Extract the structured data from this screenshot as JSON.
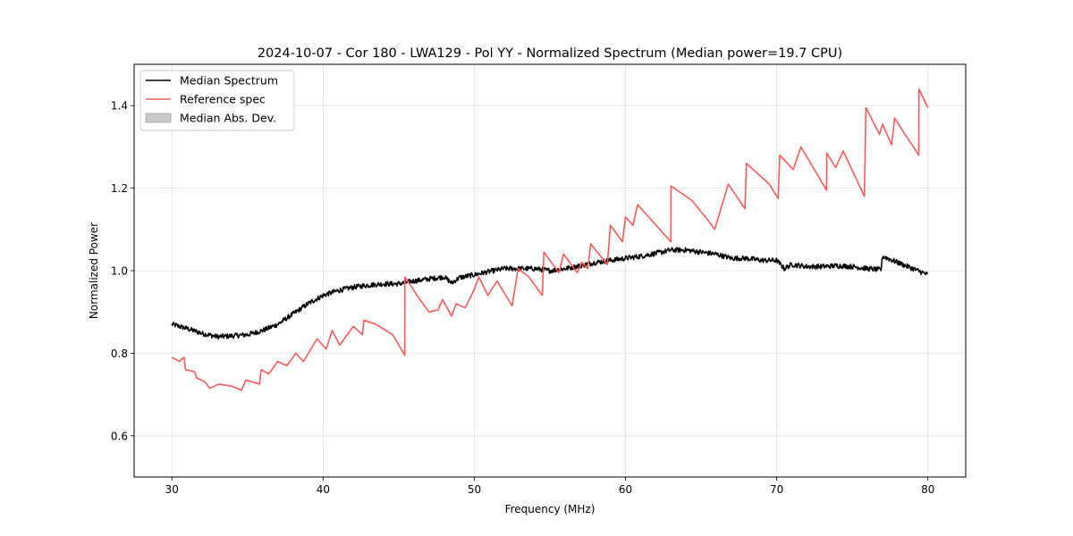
{
  "chart_data": {
    "type": "line",
    "title": "2024-10-07 - Cor 180 - LWA129 - Pol YY - Normalized Spectrum (Median power=19.7 CPU)",
    "xlabel": "Frequency (MHz)",
    "ylabel": "Normalized Power",
    "xlim": [
      27.5,
      82.5
    ],
    "ylim": [
      0.5,
      1.5
    ],
    "xticks": [
      30,
      40,
      50,
      60,
      70,
      80
    ],
    "xtick_labels": [
      "30",
      "40",
      "50",
      "60",
      "70",
      "80"
    ],
    "yticks": [
      0.6,
      0.8,
      1.0,
      1.2,
      1.4
    ],
    "ytick_labels": [
      "0.6",
      "0.8",
      "1.0",
      "1.2",
      "1.4"
    ],
    "grid": true,
    "legend_position": "top-left",
    "legend": [
      {
        "label": "Median Spectrum",
        "kind": "line",
        "color": "#000000"
      },
      {
        "label": "Reference spec",
        "kind": "line",
        "color": "#ff5a5a"
      },
      {
        "label": "Median Abs. Dev.",
        "kind": "patch",
        "color": "#a0a0a0"
      }
    ],
    "series": [
      {
        "name": "Median Spectrum",
        "color": "#000000",
        "noise_amplitude": 0.006,
        "x": [
          30,
          31,
          32,
          33,
          34,
          35,
          36,
          37,
          38,
          39,
          40,
          41,
          42,
          43,
          44,
          45,
          46,
          47,
          48,
          48.5,
          49,
          50,
          51,
          52,
          53,
          54,
          55,
          56,
          57,
          58,
          59,
          60,
          61,
          62,
          63,
          64,
          65,
          66,
          67,
          68,
          69,
          70,
          70.5,
          71,
          72,
          73,
          74,
          75,
          76,
          76.9,
          77,
          78,
          79,
          80
        ],
        "y": [
          0.87,
          0.86,
          0.848,
          0.84,
          0.842,
          0.845,
          0.855,
          0.87,
          0.895,
          0.92,
          0.94,
          0.952,
          0.96,
          0.965,
          0.968,
          0.968,
          0.975,
          0.98,
          0.985,
          0.97,
          0.983,
          0.99,
          0.998,
          1.005,
          1.005,
          1.005,
          1.0,
          1.005,
          1.012,
          1.02,
          1.025,
          1.03,
          1.035,
          1.042,
          1.05,
          1.05,
          1.045,
          1.04,
          1.03,
          1.03,
          1.025,
          1.025,
          1.005,
          1.015,
          1.01,
          1.01,
          1.012,
          1.01,
          1.005,
          1.002,
          1.035,
          1.02,
          1.005,
          0.99
        ]
      },
      {
        "name": "Reference spec",
        "color": "#ff5a5a",
        "x": [
          30.0,
          30.5,
          30.8,
          30.9,
          31.5,
          31.65,
          32.2,
          32.5,
          33.1,
          34.0,
          34.6,
          34.9,
          35.8,
          35.9,
          36.4,
          37.0,
          37.6,
          38.2,
          38.7,
          39.6,
          40.2,
          40.6,
          41.1,
          42.0,
          42.6,
          42.7,
          43.5,
          44.6,
          45.4,
          45.41,
          46.4,
          47.0,
          47.6,
          47.9,
          48.5,
          48.8,
          49.4,
          50.0,
          50.3,
          50.9,
          51.5,
          52.5,
          52.9,
          53.6,
          54.5,
          54.6,
          55.6,
          55.9,
          56.8,
          57.1,
          57.5,
          57.7,
          58.8,
          59.0,
          59.8,
          60.0,
          60.5,
          60.8,
          63.0,
          63.01,
          64.4,
          65.5,
          65.9,
          66.8,
          67.9,
          68.0,
          69.5,
          70.1,
          70.2,
          71.1,
          71.6,
          73.3,
          73.31,
          73.9,
          74.4,
          75.8,
          75.9,
          76.8,
          77.0,
          77.6,
          77.8,
          78.4,
          79.4,
          79.41,
          80.0
        ],
        "y": [
          0.79,
          0.78,
          0.79,
          0.76,
          0.755,
          0.74,
          0.73,
          0.715,
          0.725,
          0.72,
          0.71,
          0.735,
          0.725,
          0.76,
          0.75,
          0.78,
          0.77,
          0.8,
          0.78,
          0.835,
          0.81,
          0.855,
          0.82,
          0.865,
          0.845,
          0.88,
          0.87,
          0.845,
          0.795,
          0.985,
          0.93,
          0.9,
          0.905,
          0.93,
          0.89,
          0.92,
          0.91,
          0.955,
          0.985,
          0.94,
          0.975,
          0.915,
          1.005,
          0.985,
          0.94,
          1.045,
          0.995,
          1.04,
          0.995,
          1.02,
          1.005,
          1.065,
          1.015,
          1.11,
          1.07,
          1.13,
          1.11,
          1.16,
          1.07,
          1.205,
          1.17,
          1.12,
          1.1,
          1.21,
          1.15,
          1.26,
          1.21,
          1.175,
          1.28,
          1.245,
          1.3,
          1.195,
          1.285,
          1.25,
          1.29,
          1.18,
          1.395,
          1.33,
          1.355,
          1.305,
          1.37,
          1.335,
          1.28,
          1.44,
          1.395
        ]
      }
    ],
    "mad_band": {
      "name": "Median Abs. Dev.",
      "color": "#a0a0a0",
      "half_width": 0.004
    }
  }
}
